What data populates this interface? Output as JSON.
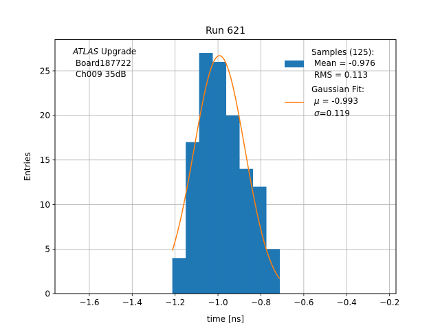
{
  "chart_data": {
    "type": "bar",
    "title": "Run 621",
    "xlabel": "time [ns]",
    "ylabel": "Entries",
    "xlim": [
      -1.76,
      -0.17
    ],
    "ylim": [
      0,
      28.5
    ],
    "grid": true,
    "xticks": [
      -1.6,
      -1.4,
      -1.2,
      -1.0,
      -0.8,
      -0.6,
      -0.4,
      -0.2
    ],
    "xtick_labels": [
      "−1.6",
      "−1.4",
      "−1.2",
      "−1.0",
      "−0.8",
      "−0.6",
      "−0.4",
      "−0.2"
    ],
    "yticks": [
      0,
      5,
      10,
      15,
      20,
      25
    ],
    "ytick_labels": [
      "0",
      "5",
      "10",
      "15",
      "20",
      "25"
    ],
    "histogram": {
      "name": "Samples",
      "color": "#1f77b4",
      "bin_edges": [
        -1.213,
        -1.1505,
        -1.088,
        -1.0255,
        -0.963,
        -0.9005,
        -0.838,
        -0.7755,
        -0.713
      ],
      "counts": [
        4,
        17,
        27,
        26,
        20,
        14,
        12,
        5
      ]
    },
    "gaussian_fit": {
      "name": "Gaussian Fit",
      "color": "#ff7f0e",
      "mu": -0.993,
      "sigma": 0.119,
      "amplitude": 26.7,
      "x_range": [
        -1.213,
        -0.713
      ]
    },
    "annotation": {
      "line1_italic": "ATLAS",
      "line1_rest": " Upgrade",
      "line2": " Board187722",
      "line3": " Ch009 35dB"
    },
    "legend": {
      "placement": "top-right",
      "samples_lines": [
        "Samples (125):",
        " Mean = -0.976",
        " RMS = 0.113"
      ],
      "fit_line1": "Gaussian Fit:",
      "fit_mu_symbol": "μ",
      "fit_mu_value": " = -0.993",
      "fit_sigma_symbol": "σ",
      "fit_sigma_value": "=0.119"
    }
  }
}
